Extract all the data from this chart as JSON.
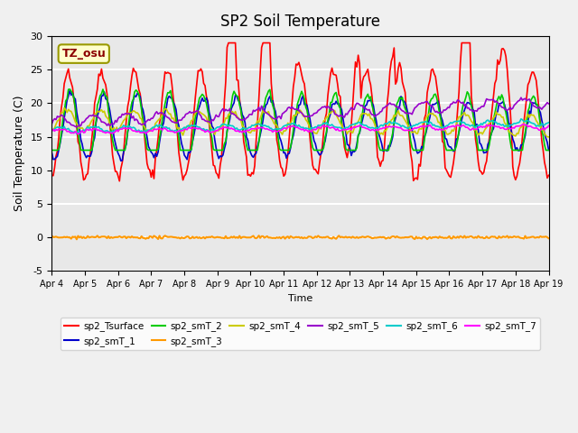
{
  "title": "SP2 Soil Temperature",
  "ylabel": "Soil Temperature (C)",
  "xlabel": "Time",
  "ylim": [
    -5,
    30
  ],
  "xlim": [
    0,
    360
  ],
  "background_color": "#e8e8e8",
  "plot_bg_color": "#e8e8e8",
  "tz_label": "TZ_osu",
  "series_colors": {
    "sp2_Tsurface": "#ff0000",
    "sp2_smT_1": "#0000cc",
    "sp2_smT_2": "#00cc00",
    "sp2_smT_3": "#ff9900",
    "sp2_smT_4": "#cccc00",
    "sp2_smT_5": "#9900cc",
    "sp2_smT_6": "#00cccc",
    "sp2_smT_7": "#ff00ff"
  },
  "x_tick_labels": [
    "Apr 4",
    "Apr 5",
    "Apr 6",
    "Apr 7",
    "Apr 8",
    "Apr 9",
    "Apr 10",
    "Apr 11",
    "Apr 12",
    "Apr 13",
    "Apr 14",
    "Apr 15",
    "Apr 16",
    "Apr 17",
    "Apr 18",
    "Apr 19"
  ],
  "x_tick_positions": [
    0,
    24,
    48,
    72,
    96,
    120,
    144,
    168,
    192,
    216,
    240,
    264,
    288,
    312,
    336,
    360
  ],
  "yticks": [
    -5,
    0,
    5,
    10,
    15,
    20,
    25,
    30
  ]
}
